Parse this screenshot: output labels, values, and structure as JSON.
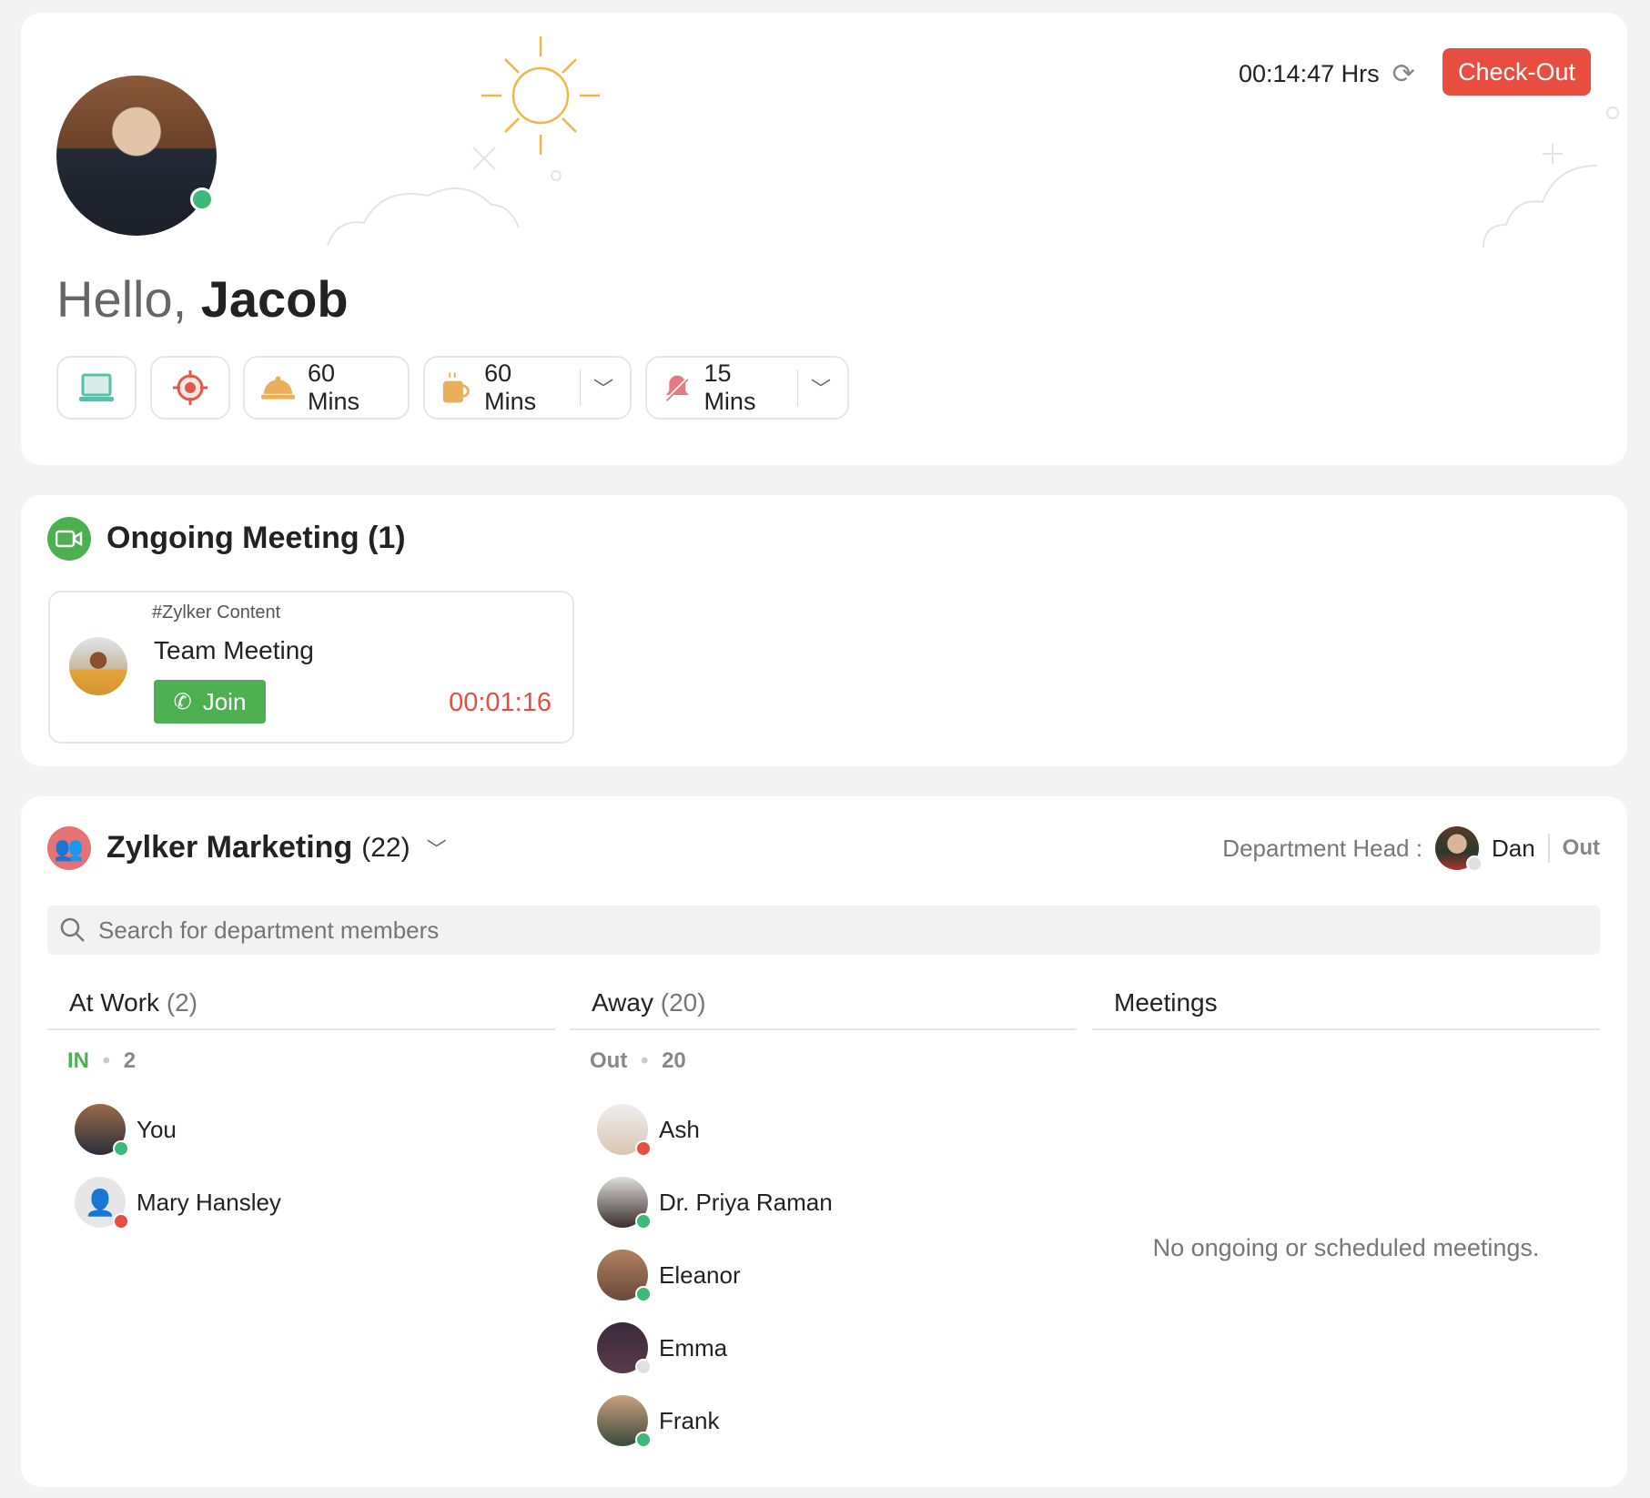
{
  "header": {
    "greeting": "Hello,",
    "user_name": "Jacob",
    "timer": "00:14:47 Hrs",
    "checkout_label": "Check-Out",
    "status_color": "#3cb878",
    "quick_actions": [
      {
        "icon": "laptop-icon"
      },
      {
        "icon": "target-icon"
      },
      {
        "icon": "meal-cloche-icon",
        "label": "60 Mins"
      },
      {
        "icon": "coffee-cup-icon",
        "label": "60 Mins"
      },
      {
        "icon": "bell-muted-icon",
        "label": "15 Mins"
      }
    ]
  },
  "meetings": {
    "title": "Ongoing Meeting (1)",
    "items": [
      {
        "channel": "#Zylker Content",
        "name": "Team Meeting",
        "join_label": "Join",
        "elapsed": "00:01:16"
      }
    ]
  },
  "department": {
    "name": "Zylker Marketing",
    "count": "(22)",
    "head_label": "Department Head :",
    "head_name": "Dan",
    "head_status": "Out",
    "search_placeholder": "Search for department members",
    "columns": {
      "at_work": {
        "title": "At Work",
        "count": "(2)",
        "sub_label": "IN",
        "sub_count": "2",
        "members": [
          {
            "name": "You",
            "status": "online"
          },
          {
            "name": "Mary  Hansley",
            "status": "on-call"
          }
        ]
      },
      "away": {
        "title": "Away",
        "count": "(20)",
        "sub_label": "Out",
        "sub_count": "20",
        "members": [
          {
            "name": "Ash",
            "status": "busy"
          },
          {
            "name": "Dr. Priya Raman",
            "status": "online"
          },
          {
            "name": "Eleanor",
            "status": "online"
          },
          {
            "name": "Emma",
            "status": "offline"
          },
          {
            "name": "Frank",
            "status": "online"
          }
        ]
      },
      "meetings": {
        "title": "Meetings",
        "empty_text": "No ongoing or scheduled meetings."
      }
    }
  },
  "colors": {
    "accent_red": "#e84e40",
    "green": "#4caf50",
    "online": "#3cb878",
    "busy": "#e84e40"
  }
}
